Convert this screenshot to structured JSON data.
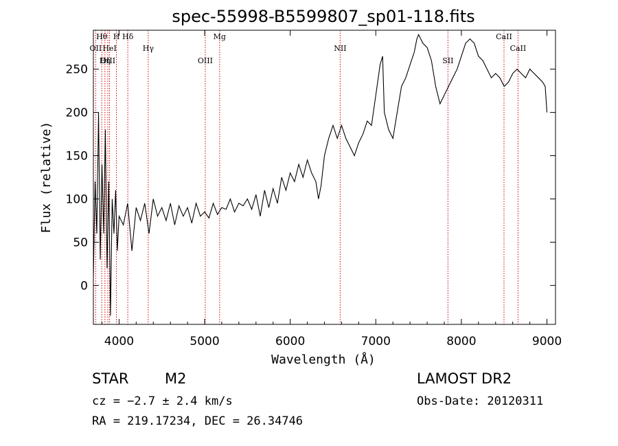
{
  "chart_data": {
    "type": "line",
    "title": "spec-55998-B5599807_sp01-118.fits",
    "xlabel": "Wavelength (Å)",
    "ylabel": "Flux (relative)",
    "xlim": [
      3700,
      9100
    ],
    "ylim": [
      -45,
      295
    ],
    "xticks": [
      4000,
      5000,
      6000,
      7000,
      8000,
      9000
    ],
    "yticks": [
      0,
      50,
      100,
      150,
      200,
      250
    ],
    "line_color": "#000000",
    "marker_color": "#cc0000",
    "series": [
      {
        "x": [
          3700,
          3720,
          3740,
          3760,
          3780,
          3800,
          3820,
          3840,
          3860,
          3880,
          3900,
          3920,
          3940,
          3960,
          3980,
          4000,
          4050,
          4100,
          4150,
          4200,
          4250,
          4300,
          4350,
          4400,
          4450,
          4500,
          4550,
          4600,
          4650,
          4700,
          4750,
          4800,
          4850,
          4900,
          4950,
          5000,
          5050,
          5100,
          5150,
          5200,
          5250,
          5300,
          5350,
          5400,
          5450,
          5500,
          5550,
          5600,
          5650,
          5700,
          5750,
          5800,
          5850,
          5900,
          5950,
          6000,
          6050,
          6100,
          6150,
          6200,
          6250,
          6300,
          6330,
          6360,
          6400,
          6450,
          6500,
          6550,
          6600,
          6650,
          6700,
          6750,
          6800,
          6850,
          6900,
          6950,
          7000,
          7050,
          7080,
          7100,
          7150,
          7200,
          7250,
          7300,
          7350,
          7400,
          7450,
          7480,
          7500,
          7550,
          7600,
          7650,
          7700,
          7750,
          7800,
          7850,
          7900,
          7950,
          8000,
          8050,
          8100,
          8150,
          8200,
          8250,
          8300,
          8350,
          8400,
          8450,
          8500,
          8550,
          8600,
          8650,
          8700,
          8750,
          8800,
          8850,
          8900,
          8950,
          8980,
          9000
        ],
        "y": [
          10,
          120,
          60,
          200,
          30,
          140,
          60,
          180,
          20,
          120,
          -35,
          100,
          60,
          110,
          40,
          80,
          70,
          95,
          40,
          90,
          75,
          95,
          60,
          100,
          80,
          90,
          75,
          95,
          70,
          92,
          80,
          90,
          72,
          95,
          80,
          85,
          78,
          95,
          82,
          90,
          88,
          100,
          85,
          95,
          92,
          100,
          88,
          105,
          80,
          110,
          90,
          112,
          95,
          125,
          110,
          130,
          120,
          140,
          125,
          145,
          130,
          120,
          100,
          115,
          150,
          170,
          185,
          170,
          185,
          170,
          160,
          150,
          165,
          175,
          190,
          185,
          220,
          255,
          265,
          200,
          180,
          170,
          200,
          230,
          240,
          255,
          270,
          285,
          290,
          280,
          275,
          260,
          230,
          210,
          220,
          230,
          240,
          250,
          265,
          280,
          285,
          280,
          265,
          260,
          250,
          240,
          245,
          240,
          230,
          235,
          245,
          250,
          245,
          240,
          250,
          245,
          240,
          235,
          230,
          200
        ]
      }
    ],
    "lines": [
      {
        "name": "Hθ",
        "x": 3798
      },
      {
        "name": "OII",
        "x": 3727
      },
      {
        "name": "OIII",
        "x": 3869
      },
      {
        "name": "H",
        "x": 3969
      },
      {
        "name": "HeI",
        "x": 3889
      },
      {
        "name": "Hη",
        "x": 3835
      },
      {
        "name": "Hδ",
        "x": 4102
      },
      {
        "name": "Hγ",
        "x": 4341
      },
      {
        "name": "OIII",
        "x": 5007
      },
      {
        "name": "Mg",
        "x": 5175
      },
      {
        "name": "NII",
        "x": 6584
      },
      {
        "name": "SII",
        "x": 7843
      },
      {
        "name": "CaII",
        "x": 8498
      },
      {
        "name": "CaII",
        "x": 8662
      }
    ]
  },
  "info": {
    "class": "STAR",
    "subclass": "M2",
    "survey": "LAMOST DR2",
    "cz": "cz = −2.7 ± 2.4 km/s",
    "obsdate": "Obs-Date: 20120311",
    "radec": "RA = 219.17234, DEC =  26.34746"
  }
}
